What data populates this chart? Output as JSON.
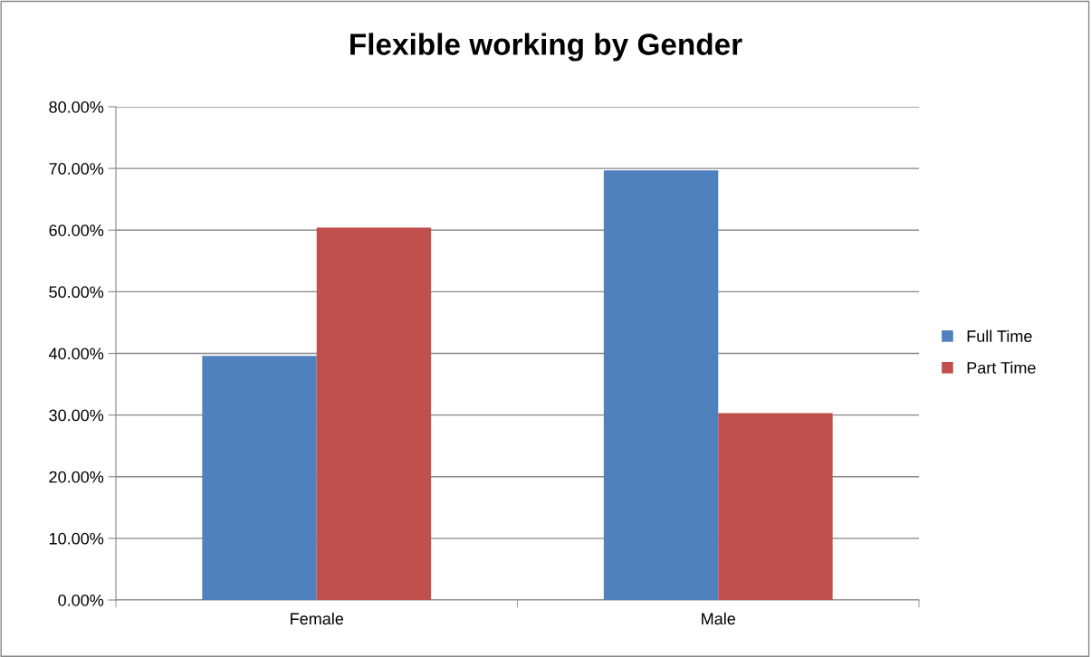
{
  "chart_data": {
    "type": "bar",
    "title": "Flexible working by Gender",
    "categories": [
      "Female",
      "Male"
    ],
    "series": [
      {
        "name": "Full Time",
        "color": "#4f81bd",
        "values": [
          39.6,
          69.7
        ]
      },
      {
        "name": "Part Time",
        "color": "#c0504d",
        "values": [
          60.4,
          30.3
        ]
      }
    ],
    "ylim": [
      0,
      80
    ],
    "yticks": [
      {
        "value": 0,
        "label": "0.00%"
      },
      {
        "value": 10,
        "label": "10.00%"
      },
      {
        "value": 20,
        "label": "20.00%"
      },
      {
        "value": 30,
        "label": "30.00%"
      },
      {
        "value": 40,
        "label": "40.00%"
      },
      {
        "value": 50,
        "label": "50.00%"
      },
      {
        "value": 60,
        "label": "60.00%"
      },
      {
        "value": 70,
        "label": "70.00%"
      },
      {
        "value": 80,
        "label": "80.00%"
      }
    ],
    "grid": "y",
    "legend": "right"
  }
}
